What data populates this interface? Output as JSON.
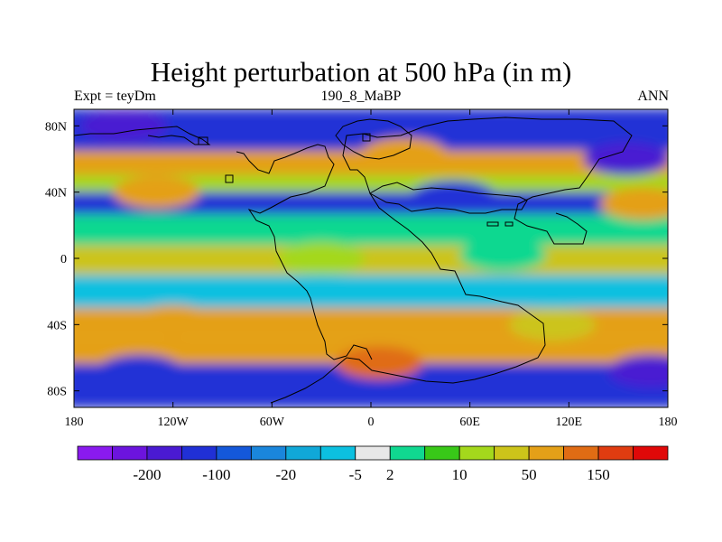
{
  "chart_data": {
    "type": "heatmap",
    "title": "Height perturbation at 500 hPa (in m)",
    "left_string": "Expt = teyDm",
    "center_string": "190_8_MaBP",
    "right_string": "ANN",
    "x_range": [
      -180,
      180
    ],
    "y_range": [
      -90,
      90
    ],
    "x_ticks": [
      -180,
      -120,
      -60,
      0,
      60,
      120,
      180
    ],
    "x_tick_labels": [
      "180",
      "120W",
      "60W",
      "0",
      "60E",
      "120E",
      "180"
    ],
    "y_ticks": [
      80,
      40,
      0,
      -40,
      -80
    ],
    "y_tick_labels": [
      "80N",
      "40N",
      "0",
      "40S",
      "80S"
    ],
    "colorbar": {
      "colors": [
        "#8a1aef",
        "#6c14de",
        "#4a1ad2",
        "#2030d6",
        "#1458da",
        "#1a86dc",
        "#10a8d8",
        "#0cc0e0",
        "#e8e8e8",
        "#10d890",
        "#38c818",
        "#a4d81c",
        "#ccc41a",
        "#e4a018",
        "#e06c14",
        "#e03c10",
        "#e00808"
      ],
      "labels": [
        "-200",
        "-100",
        "-20",
        "-5",
        "2",
        "10",
        "50",
        "150"
      ],
      "label_after_box": [
        1,
        3,
        5,
        7,
        8,
        10,
        12,
        14
      ]
    },
    "bands": [
      {
        "lat": 72,
        "value": -90
      },
      {
        "lat": 58,
        "value": 60
      },
      {
        "lat": 43,
        "value": 10
      },
      {
        "lat": 37,
        "value": -60
      },
      {
        "lat": 16,
        "value": 2
      },
      {
        "lat": 0,
        "value": 20
      },
      {
        "lat": -20,
        "value": -5
      },
      {
        "lat": -40,
        "value": 60
      },
      {
        "lat": -55,
        "value": 80
      },
      {
        "lat": -72,
        "value": -70
      }
    ],
    "blobs": [
      {
        "lon": -150,
        "lat": 80,
        "value": -110
      },
      {
        "lon": 155,
        "lat": 60,
        "value": -130
      },
      {
        "lon": 20,
        "lat": 63,
        "value": 60
      },
      {
        "lon": -130,
        "lat": 40,
        "value": 60
      },
      {
        "lon": 165,
        "lat": 33,
        "value": 60
      },
      {
        "lon": 50,
        "lat": 37,
        "value": -100
      },
      {
        "lon": 80,
        "lat": 2,
        "value": 2
      },
      {
        "lon": -30,
        "lat": 0,
        "value": 10
      },
      {
        "lon": -120,
        "lat": -38,
        "value": 60
      },
      {
        "lon": 5,
        "lat": -63,
        "value": 110
      },
      {
        "lon": -140,
        "lat": -68,
        "value": -80
      },
      {
        "lon": 170,
        "lat": -68,
        "value": -110
      },
      {
        "lon": 110,
        "lat": -40,
        "value": 40
      }
    ]
  }
}
